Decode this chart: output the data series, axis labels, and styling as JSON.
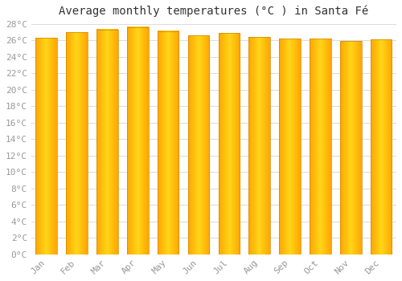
{
  "title": "Average monthly temperatures (°C ) in Santa Fé",
  "months": [
    "Jan",
    "Feb",
    "Mar",
    "Apr",
    "May",
    "Jun",
    "Jul",
    "Aug",
    "Sep",
    "Oct",
    "Nov",
    "Dec"
  ],
  "values": [
    26.3,
    27.0,
    27.3,
    27.6,
    27.1,
    26.6,
    26.9,
    26.4,
    26.2,
    26.2,
    25.9,
    26.1
  ],
  "bar_color_center": "#FFD700",
  "bar_color_edge": "#FFA500",
  "bar_border_color": "#CC8800",
  "ylim": [
    0,
    28
  ],
  "ytick_step": 2,
  "background_color": "#ffffff",
  "grid_color": "#dddddd",
  "title_fontsize": 10,
  "tick_fontsize": 8,
  "tick_color": "#999999",
  "title_color": "#333333"
}
